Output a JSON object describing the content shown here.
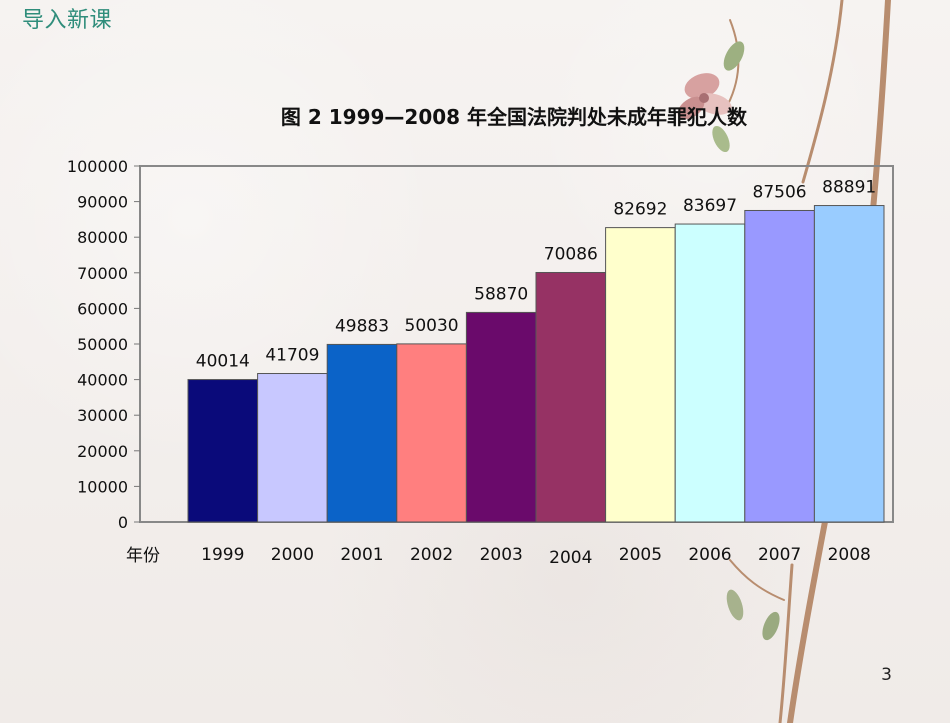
{
  "header": {
    "title": "导入新课"
  },
  "footer": {
    "page_number": "3"
  },
  "chart_data": {
    "type": "bar",
    "title": "图 2 1999—2008 年全国法院判处未成年罪犯人数",
    "xlabel": "年份",
    "ylabel": "",
    "categories": [
      "1999",
      "2000",
      "2001",
      "2002",
      "2003",
      "2004",
      "2005",
      "2006",
      "2007",
      "2008"
    ],
    "values": [
      40014,
      41709,
      49883,
      50030,
      58870,
      70086,
      82692,
      83697,
      87506,
      88891
    ],
    "ylim": [
      0,
      100000
    ],
    "yticks": [
      0,
      10000,
      20000,
      30000,
      40000,
      50000,
      60000,
      70000,
      80000,
      90000,
      100000
    ],
    "colors": [
      "#0a0a7a",
      "#c8c8ff",
      "#0b63c8",
      "#ff7f7f",
      "#6a0a6b",
      "#963264",
      "#ffffcc",
      "#ccffff",
      "#9999ff",
      "#99ccff"
    ],
    "grid": false,
    "legend": "none"
  }
}
